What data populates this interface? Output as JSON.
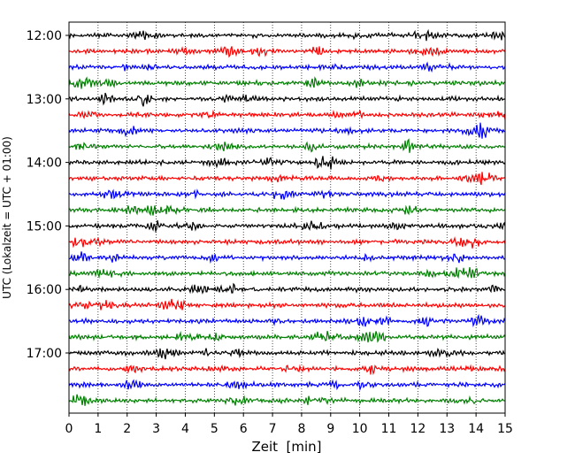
{
  "chart_data": {
    "type": "line",
    "title": "",
    "xlabel": "Zeit  [min]",
    "ylabel": "UTC (Lokalzeit = UTC + 01:00)",
    "xlim": [
      0,
      15
    ],
    "x_ticks": [
      0,
      1,
      2,
      3,
      4,
      5,
      6,
      7,
      8,
      9,
      10,
      11,
      12,
      13,
      14,
      15
    ],
    "y_tick_labels": [
      "12:00",
      "13:00",
      "14:00",
      "15:00",
      "16:00",
      "17:00"
    ],
    "trace_start": "12:00",
    "trace_interval_minutes": 15,
    "trace_count": 24,
    "trace_colors": [
      "#000000",
      "#ff0000",
      "#0000ff",
      "#008000"
    ],
    "vertical_grid": "dotted",
    "legend": "none"
  }
}
